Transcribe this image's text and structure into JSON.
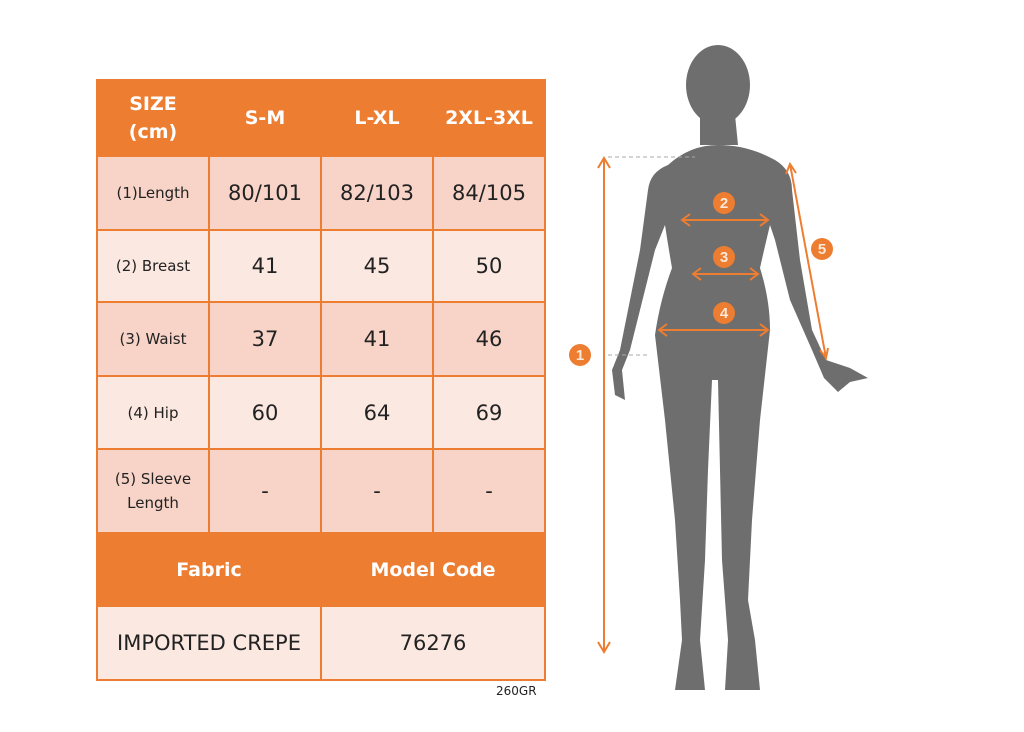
{
  "table": {
    "header": [
      "SIZE (cm)",
      "S-M",
      "L-XL",
      "2XL-3XL"
    ],
    "rows": [
      {
        "label": "(1)Length",
        "values": [
          "80/101",
          "82/103",
          "84/105"
        ]
      },
      {
        "label": "(2) Breast",
        "values": [
          "41",
          "45",
          "50"
        ]
      },
      {
        "label": "(3) Waist",
        "values": [
          "37",
          "41",
          "46"
        ]
      },
      {
        "label": "(4) Hip",
        "values": [
          "60",
          "64",
          "69"
        ]
      },
      {
        "label": "(5) Sleeve Length",
        "values": [
          "-",
          "-",
          "-"
        ]
      }
    ],
    "footer_header": [
      "Fabric",
      "Model Code"
    ],
    "footer_values": [
      "IMPORTED CREPE",
      "76276"
    ]
  },
  "note": "260GR",
  "figure": {
    "markers": [
      "1",
      "2",
      "3",
      "4",
      "5"
    ]
  },
  "colors": {
    "accent": "#ED7D31",
    "row_dark": "#F7D4C7",
    "row_light": "#FBE8E1",
    "silhouette": "#6E6E6E"
  }
}
